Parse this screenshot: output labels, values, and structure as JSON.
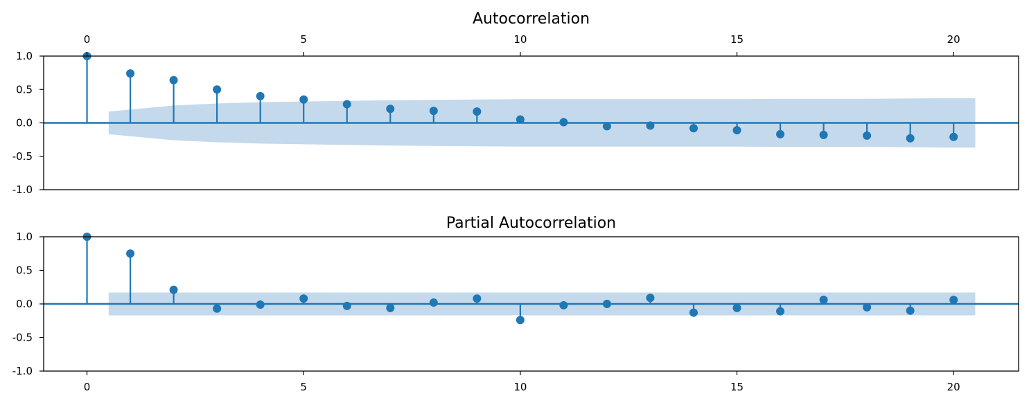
{
  "chart_data": [
    {
      "type": "stem",
      "title": "Autocorrelation",
      "xlabel": "",
      "ylabel": "",
      "xlim": [
        -1,
        21.5
      ],
      "ylim": [
        -1.0,
        1.0
      ],
      "x_ticks": [
        0,
        5,
        10,
        15,
        20
      ],
      "x_tick_position": "top",
      "y_ticks": [
        1.0,
        0.5,
        0.0,
        -0.5,
        -1.0
      ],
      "y_tick_labels": [
        "1.0",
        "0.5",
        "0.0",
        "-0.5",
        "-1.0"
      ],
      "lags": [
        0,
        1,
        2,
        3,
        4,
        5,
        6,
        7,
        8,
        9,
        10,
        11,
        12,
        13,
        14,
        15,
        16,
        17,
        18,
        19,
        20
      ],
      "values": [
        1.0,
        0.74,
        0.64,
        0.5,
        0.4,
        0.35,
        0.28,
        0.21,
        0.18,
        0.17,
        0.05,
        0.01,
        -0.05,
        -0.04,
        -0.08,
        -0.11,
        -0.17,
        -0.18,
        -0.19,
        -0.23,
        -0.21
      ],
      "confidence_band": {
        "x_range": [
          0.5,
          20.5
        ],
        "lags": [
          0.5,
          1,
          2,
          3,
          4,
          5,
          6,
          7,
          8,
          9,
          10,
          11,
          12,
          13,
          14,
          15,
          16,
          17,
          18,
          19,
          20,
          20.5
        ],
        "upper": [
          0.17,
          0.2,
          0.26,
          0.29,
          0.31,
          0.32,
          0.33,
          0.34,
          0.345,
          0.35,
          0.355,
          0.355,
          0.355,
          0.355,
          0.355,
          0.355,
          0.36,
          0.36,
          0.36,
          0.365,
          0.37,
          0.37
        ]
      },
      "grid": false,
      "legend": "none"
    },
    {
      "type": "stem",
      "title": "Partial Autocorrelation",
      "xlabel": "",
      "ylabel": "",
      "xlim": [
        -1,
        21.5
      ],
      "ylim": [
        -1.0,
        1.0
      ],
      "x_ticks": [
        0,
        5,
        10,
        15,
        20
      ],
      "x_tick_position": "bottom",
      "y_ticks": [
        1.0,
        0.5,
        0.0,
        -0.5,
        -1.0
      ],
      "y_tick_labels": [
        "1.0",
        "0.5",
        "0.0",
        "-0.5",
        "-1.0"
      ],
      "lags": [
        0,
        1,
        2,
        3,
        4,
        5,
        6,
        7,
        8,
        9,
        10,
        11,
        12,
        13,
        14,
        15,
        16,
        17,
        18,
        19,
        20
      ],
      "values": [
        1.0,
        0.75,
        0.21,
        -0.07,
        -0.01,
        0.08,
        -0.03,
        -0.06,
        0.02,
        0.08,
        -0.24,
        -0.02,
        0.0,
        0.09,
        -0.13,
        -0.06,
        -0.11,
        0.06,
        -0.05,
        -0.1,
        0.06
      ],
      "confidence_band": {
        "x_range": [
          0.5,
          20.5
        ],
        "lags": [
          0.5,
          20.5
        ],
        "upper": [
          0.17,
          0.17
        ]
      },
      "grid": false,
      "legend": "none"
    }
  ],
  "colors": {
    "stem": "#1f77b4",
    "band": "#c5d9ec",
    "axes": "#000000"
  }
}
